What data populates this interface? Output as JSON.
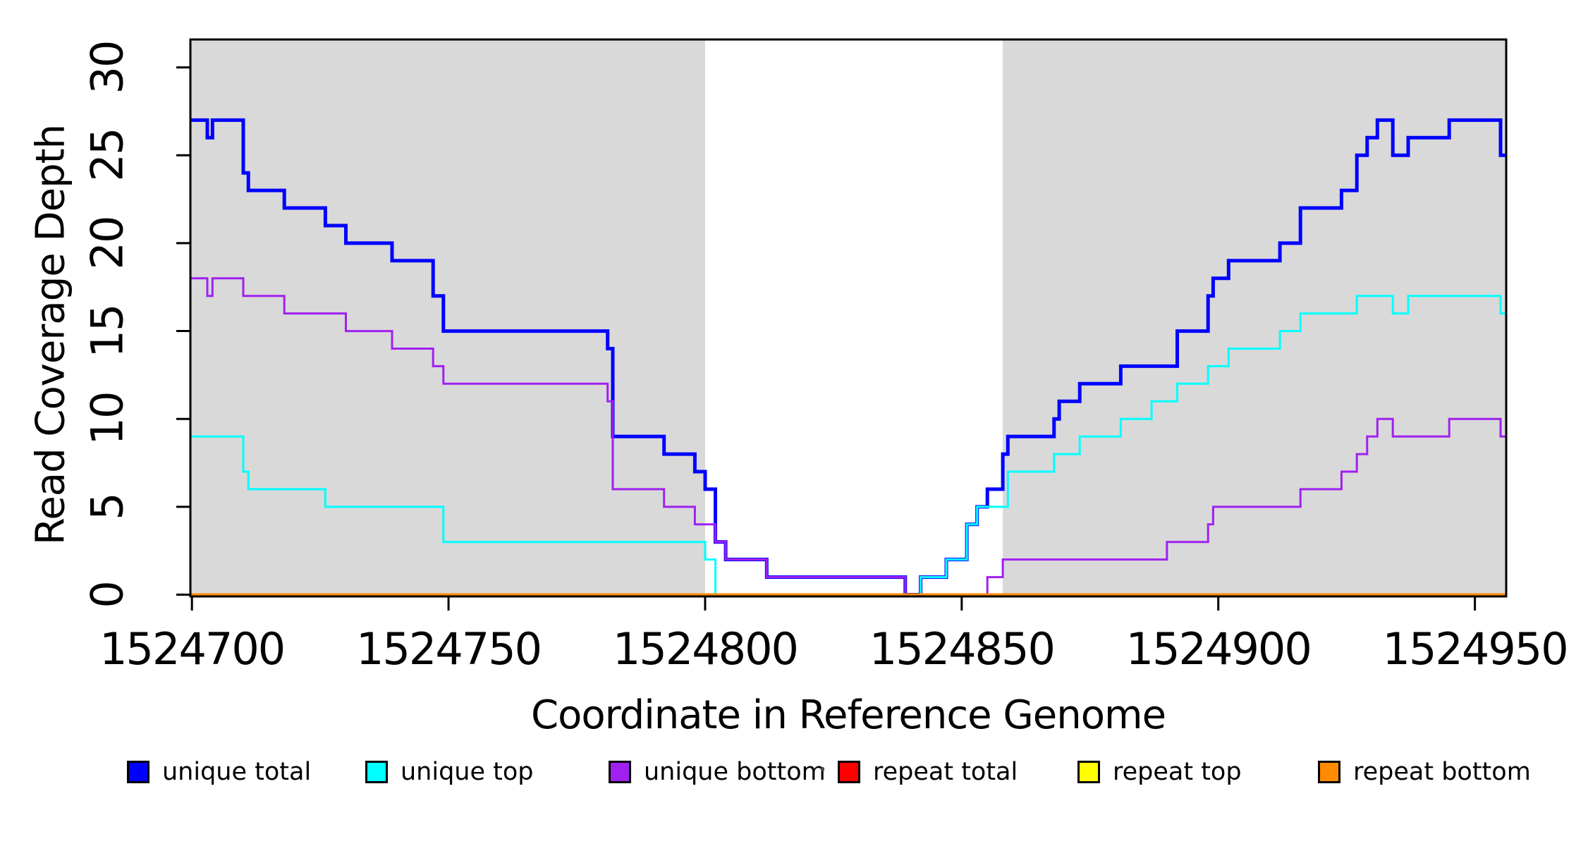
{
  "x_axis": {
    "title": "Coordinate in Reference Genome",
    "tick_labels": [
      "1524700",
      "1524750",
      "1524800",
      "1524850",
      "1524900",
      "1524950"
    ]
  },
  "y_axis": {
    "title": "Read Coverage Depth",
    "tick_labels": [
      "0",
      "5",
      "10",
      "15",
      "20",
      "25",
      "30"
    ]
  },
  "legend": {
    "items": [
      {
        "label": "unique total",
        "color": "#0000FF"
      },
      {
        "label": "unique top",
        "color": "#00FFFF"
      },
      {
        "label": "unique bottom",
        "color": "#A020F0"
      },
      {
        "label": "repeat total",
        "color": "#FF0000"
      },
      {
        "label": "repeat top",
        "color": "#FFFF00"
      },
      {
        "label": "repeat bottom",
        "color": "#FF8C00"
      }
    ]
  },
  "colors": {
    "shaded_region": "#D9D9D9",
    "plot_background": "#FFFFFF",
    "axis": "#000000"
  },
  "chart_data": {
    "type": "line",
    "subtype": "step",
    "title": "",
    "xlabel": "Coordinate in Reference Genome",
    "ylabel": "Read Coverage Depth",
    "xlim": [
      1524699.7,
      1524956.1
    ],
    "ylim": [
      0,
      31.6
    ],
    "x_ticks": [
      1524700,
      1524750,
      1524800,
      1524850,
      1524900,
      1524950
    ],
    "y_ticks": [
      0,
      5,
      10,
      15,
      20,
      25,
      30
    ],
    "grid": false,
    "legend_position": "bottom",
    "shaded_regions": [
      {
        "from": 1524699.7,
        "to": 1524800,
        "color": "#D9D9D9",
        "meaning": "shaded flank region"
      },
      {
        "from": 1524858,
        "to": 1524956.1,
        "color": "#D9D9D9",
        "meaning": "shaded flank region"
      }
    ],
    "series": [
      {
        "name": "unique total",
        "color": "#0000FF",
        "line_width": 5,
        "steps": [
          [
            1524699.7,
            27
          ],
          [
            1524703,
            26
          ],
          [
            1524704,
            27
          ],
          [
            1524710,
            24
          ],
          [
            1524711,
            23
          ],
          [
            1524718,
            22
          ],
          [
            1524726,
            21
          ],
          [
            1524730,
            20
          ],
          [
            1524739,
            19
          ],
          [
            1524747,
            17
          ],
          [
            1524749,
            15
          ],
          [
            1524781,
            14
          ],
          [
            1524782,
            9
          ],
          [
            1524792,
            8
          ],
          [
            1524798,
            7
          ],
          [
            1524800,
            6
          ],
          [
            1524802,
            3
          ],
          [
            1524804,
            2
          ],
          [
            1524812,
            1
          ],
          [
            1524839,
            0
          ],
          [
            1524842,
            1
          ],
          [
            1524847,
            2
          ],
          [
            1524851,
            4
          ],
          [
            1524853,
            5
          ],
          [
            1524855,
            6
          ],
          [
            1524858,
            8
          ],
          [
            1524859,
            9
          ],
          [
            1524868,
            10
          ],
          [
            1524869,
            11
          ],
          [
            1524873,
            12
          ],
          [
            1524881,
            13
          ],
          [
            1524892,
            15
          ],
          [
            1524898,
            17
          ],
          [
            1524899,
            18
          ],
          [
            1524902,
            19
          ],
          [
            1524912,
            20
          ],
          [
            1524916,
            22
          ],
          [
            1524924,
            23
          ],
          [
            1524927,
            25
          ],
          [
            1524929,
            26
          ],
          [
            1524931,
            27
          ],
          [
            1524934,
            25
          ],
          [
            1524937,
            26
          ],
          [
            1524945,
            27
          ],
          [
            1524955,
            25
          ]
        ]
      },
      {
        "name": "unique top",
        "color": "#00FFFF",
        "line_width": 3,
        "steps": [
          [
            1524699.7,
            9
          ],
          [
            1524710,
            7
          ],
          [
            1524711,
            6
          ],
          [
            1524726,
            5
          ],
          [
            1524749,
            3
          ],
          [
            1524800,
            2
          ],
          [
            1524802,
            0
          ],
          [
            1524842,
            1
          ],
          [
            1524847,
            2
          ],
          [
            1524851,
            4
          ],
          [
            1524853,
            5
          ],
          [
            1524859,
            7
          ],
          [
            1524868,
            8
          ],
          [
            1524873,
            9
          ],
          [
            1524881,
            10
          ],
          [
            1524887,
            11
          ],
          [
            1524892,
            12
          ],
          [
            1524898,
            13
          ],
          [
            1524902,
            14
          ],
          [
            1524912,
            15
          ],
          [
            1524916,
            16
          ],
          [
            1524927,
            17
          ],
          [
            1524934,
            16
          ],
          [
            1524937,
            17
          ],
          [
            1524955,
            16
          ]
        ]
      },
      {
        "name": "unique bottom",
        "color": "#A020F0",
        "line_width": 3,
        "steps": [
          [
            1524699.7,
            18
          ],
          [
            1524703,
            17
          ],
          [
            1524704,
            18
          ],
          [
            1524710,
            17
          ],
          [
            1524718,
            16
          ],
          [
            1524730,
            15
          ],
          [
            1524739,
            14
          ],
          [
            1524747,
            13
          ],
          [
            1524749,
            12
          ],
          [
            1524781,
            11
          ],
          [
            1524782,
            6
          ],
          [
            1524792,
            5
          ],
          [
            1524798,
            4
          ],
          [
            1524802,
            3
          ],
          [
            1524804,
            2
          ],
          [
            1524812,
            1
          ],
          [
            1524839,
            0
          ],
          [
            1524855,
            1
          ],
          [
            1524858,
            2
          ],
          [
            1524890,
            3
          ],
          [
            1524898,
            4
          ],
          [
            1524899,
            5
          ],
          [
            1524916,
            6
          ],
          [
            1524924,
            7
          ],
          [
            1524927,
            8
          ],
          [
            1524929,
            9
          ],
          [
            1524931,
            10
          ],
          [
            1524934,
            9
          ],
          [
            1524945,
            10
          ],
          [
            1524955,
            9
          ]
        ]
      },
      {
        "name": "repeat total",
        "color": "#FF0000",
        "line_width": 3,
        "steps": [
          [
            1524699.7,
            0
          ]
        ]
      },
      {
        "name": "repeat top",
        "color": "#FFFF00",
        "line_width": 3,
        "steps": [
          [
            1524699.7,
            0
          ]
        ]
      },
      {
        "name": "repeat bottom",
        "color": "#FF8C00",
        "line_width": 4,
        "steps": [
          [
            1524699.7,
            0
          ]
        ]
      }
    ]
  }
}
